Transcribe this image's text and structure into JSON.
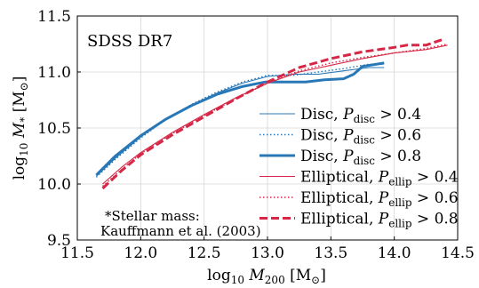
{
  "chart_data": {
    "type": "line",
    "title": "",
    "panel_label": "SDSS DR7",
    "annotation": [
      "*Stellar mass:",
      "Kauffmann et al. (2003)"
    ],
    "xlabel": "log10 M200 [M⊙]",
    "ylabel": "log10 M* [M⊙]",
    "xlim": [
      11.5,
      14.5
    ],
    "ylim": [
      9.5,
      11.5
    ],
    "xticks": [
      "11.5",
      "12.0",
      "12.5",
      "13.0",
      "13.5",
      "14.0",
      "14.5"
    ],
    "yticks": [
      "9.5",
      "10.0",
      "10.5",
      "11.0",
      "11.5"
    ],
    "grid": true,
    "legend_position": "right",
    "colors": {
      "disc": "#2878b8",
      "elliptical": "#d62746"
    },
    "series": [
      {
        "name": "Disc, Pdisc > 0.4",
        "group": "disc",
        "style": "thin-solid",
        "x": [
          11.65,
          11.8,
          12.0,
          12.2,
          12.4,
          12.6,
          12.8,
          13.0,
          13.2,
          13.4,
          13.6,
          13.8,
          13.92
        ],
        "y": [
          10.07,
          10.23,
          10.42,
          10.58,
          10.7,
          10.81,
          10.9,
          10.96,
          10.98,
          10.98,
          11.01,
          11.04,
          11.04
        ]
      },
      {
        "name": "Disc, Pdisc > 0.6",
        "group": "disc",
        "style": "dotted",
        "x": [
          11.65,
          11.8,
          12.0,
          12.2,
          12.4,
          12.6,
          12.8,
          13.0,
          13.2,
          13.4,
          13.6,
          13.8,
          13.92
        ],
        "y": [
          10.06,
          10.22,
          10.41,
          10.58,
          10.71,
          10.82,
          10.91,
          10.97,
          10.97,
          11.0,
          11.03,
          11.07,
          11.07
        ]
      },
      {
        "name": "Disc, Pdisc > 0.8",
        "group": "disc",
        "style": "thick-solid",
        "x": [
          11.65,
          11.8,
          12.0,
          12.2,
          12.4,
          12.6,
          12.8,
          12.98,
          13.1,
          13.3,
          13.45,
          13.6,
          13.68,
          13.75,
          13.92
        ],
        "y": [
          10.08,
          10.25,
          10.43,
          10.58,
          10.7,
          10.8,
          10.87,
          10.91,
          10.91,
          10.91,
          10.93,
          10.94,
          10.98,
          11.05,
          11.08
        ]
      },
      {
        "name": "Elliptical, Pellip > 0.4",
        "group": "elliptical",
        "style": "thin-solid",
        "x": [
          11.7,
          11.85,
          12.0,
          12.25,
          12.5,
          12.75,
          13.0,
          13.25,
          13.5,
          13.75,
          14.0,
          14.25,
          14.42
        ],
        "y": [
          10.0,
          10.15,
          10.28,
          10.46,
          10.62,
          10.77,
          10.9,
          11.0,
          11.06,
          11.12,
          11.17,
          11.2,
          11.24
        ]
      },
      {
        "name": "Elliptical, Pellip > 0.6",
        "group": "elliptical",
        "style": "dotted",
        "x": [
          11.7,
          11.85,
          12.0,
          12.25,
          12.5,
          12.75,
          13.0,
          13.25,
          13.5,
          13.75,
          14.0,
          14.25,
          14.42
        ],
        "y": [
          9.98,
          10.13,
          10.27,
          10.45,
          10.61,
          10.76,
          10.9,
          11.01,
          11.08,
          11.13,
          11.17,
          11.21,
          11.25
        ]
      },
      {
        "name": "Elliptical, Pellip > 0.8",
        "group": "elliptical",
        "style": "thick-dashed",
        "x": [
          11.7,
          11.85,
          12.0,
          12.25,
          12.5,
          12.75,
          13.0,
          13.25,
          13.5,
          13.75,
          14.0,
          14.1,
          14.25,
          14.38
        ],
        "y": [
          9.96,
          10.12,
          10.26,
          10.44,
          10.6,
          10.76,
          10.91,
          11.04,
          11.12,
          11.18,
          11.22,
          11.24,
          11.24,
          11.29
        ]
      }
    ]
  }
}
